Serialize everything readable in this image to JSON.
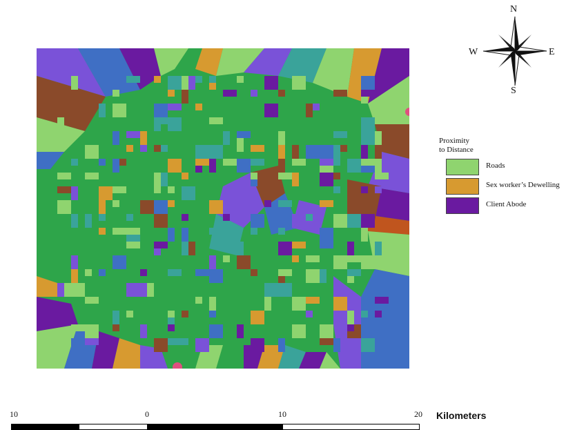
{
  "title": "",
  "compass": {
    "north": "N",
    "south": "S",
    "east": "E",
    "west": "W"
  },
  "legend": {
    "title_line1": "Proximity",
    "title_line2": "to Distance",
    "items": [
      {
        "label": "Roads",
        "color": "#8fd46f"
      },
      {
        "label": "Sex worker’s Dewelling",
        "color": "#d79a30"
      },
      {
        "label": "Client Abode",
        "color": "#6a1aa0"
      }
    ]
  },
  "scale_bar": {
    "ticks": [
      "10",
      "0",
      "10",
      "20"
    ],
    "units": "Kilometers"
  },
  "map_colors": {
    "green": "#2ea54a",
    "light_green": "#8fd46f",
    "orange": "#d79a30",
    "purple": "#6a1aa0",
    "violet": "#7a52d8",
    "blue": "#3f6fc4",
    "teal": "#3aa39a",
    "brown": "#8a4a2a",
    "rust": "#c0551e"
  }
}
